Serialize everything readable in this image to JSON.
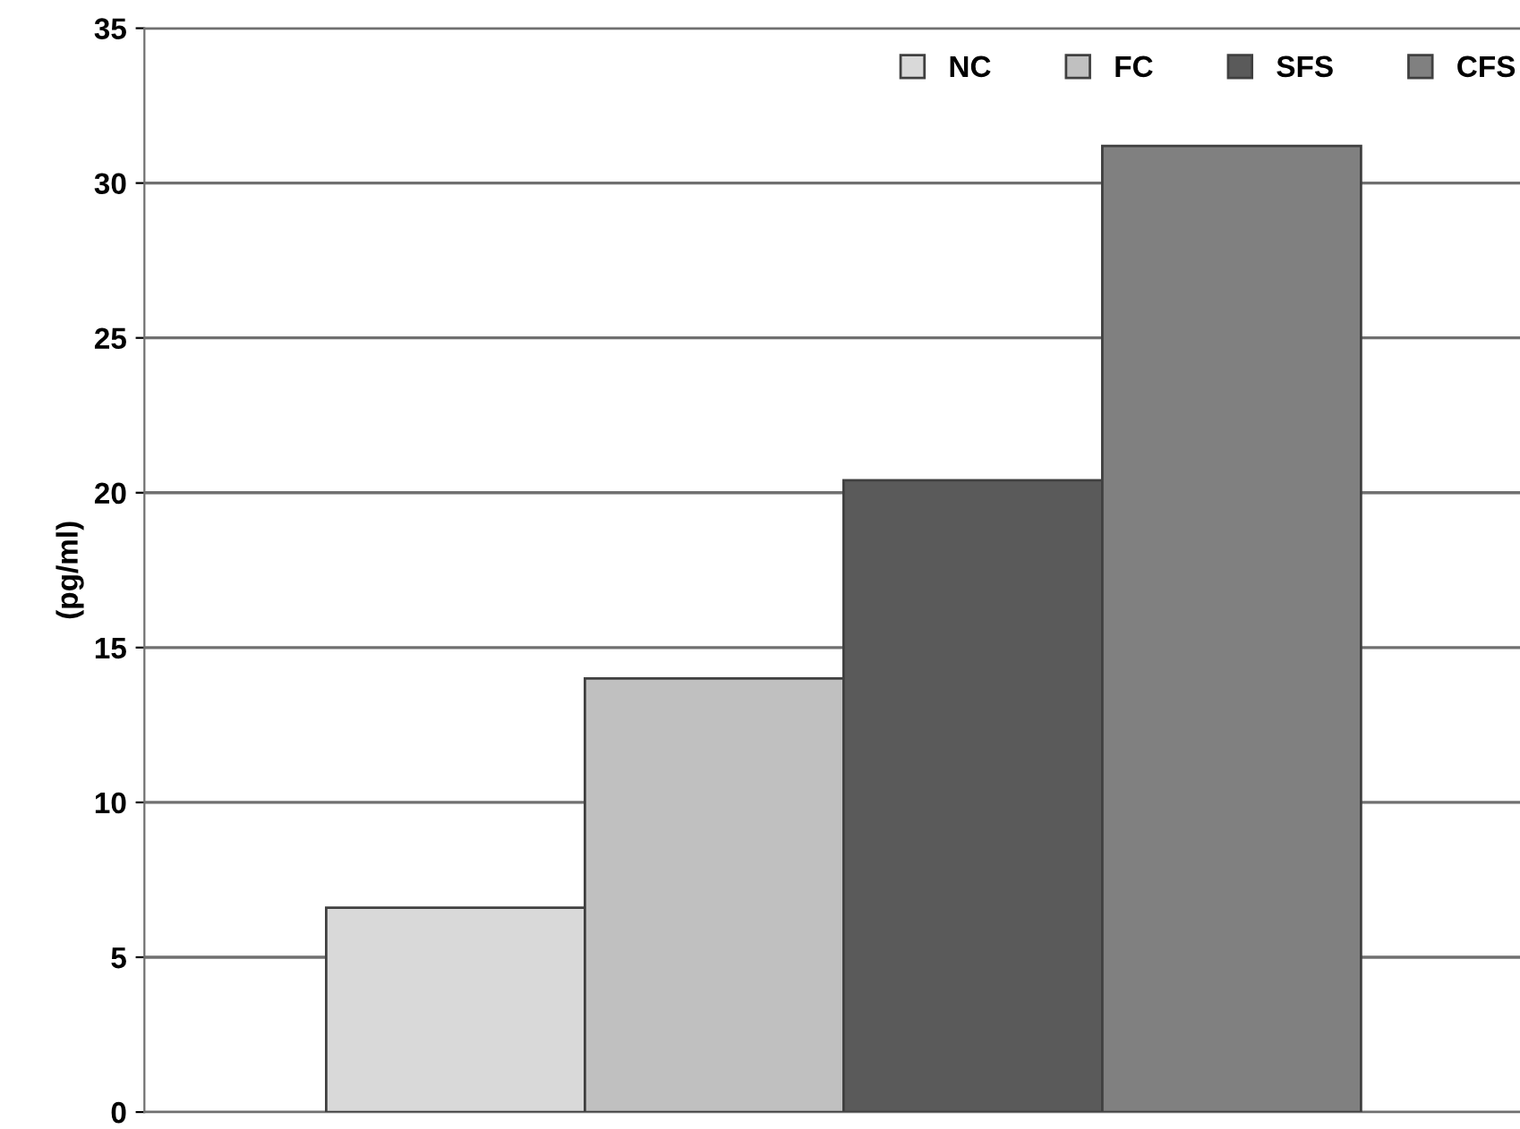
{
  "chart_data": {
    "type": "bar",
    "ylabel": "(pg/ml)",
    "categories": [
      null
    ],
    "series": [
      {
        "name": "NC",
        "color": "#d9d9d9",
        "values": [
          6.6
        ]
      },
      {
        "name": "FC",
        "color": "#c0c0c0",
        "values": [
          14.0
        ]
      },
      {
        "name": "SFS",
        "color": "#5a5a5a",
        "values": [
          20.4
        ]
      },
      {
        "name": "CFS",
        "color": "#808080",
        "values": [
          31.2
        ]
      }
    ],
    "ylim": [
      0,
      35
    ],
    "yticks": [
      0,
      5,
      10,
      15,
      20,
      25,
      30,
      35
    ],
    "grid": "y",
    "legend": "top right"
  }
}
